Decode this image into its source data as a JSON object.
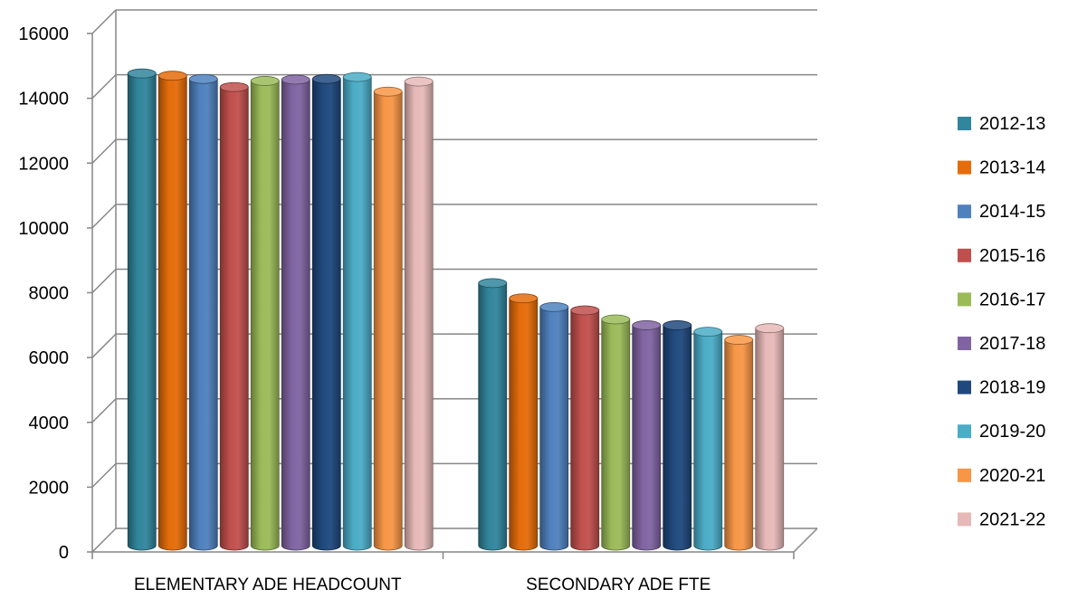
{
  "chart_data": {
    "type": "bar",
    "categories": [
      "ELEMENTARY ADE HEADCOUNT",
      "SECONDARY ADE FTE"
    ],
    "series": [
      {
        "name": "2012-13",
        "color": "#31859C",
        "values": [
          14850,
          8380
        ]
      },
      {
        "name": "2013-14",
        "color": "#E46C0A",
        "values": [
          14780,
          7910
        ]
      },
      {
        "name": "2014-15",
        "color": "#4F81BD",
        "values": [
          14680,
          7640
        ]
      },
      {
        "name": "2015-16",
        "color": "#C0504D",
        "values": [
          14430,
          7540
        ]
      },
      {
        "name": "2016-17",
        "color": "#9BBB59",
        "values": [
          14620,
          7260
        ]
      },
      {
        "name": "2017-18",
        "color": "#8064A2",
        "values": [
          14660,
          7080
        ]
      },
      {
        "name": "2018-19",
        "color": "#1F497D",
        "values": [
          14680,
          7080
        ]
      },
      {
        "name": "2019-20",
        "color": "#4BACC6",
        "values": [
          14740,
          6880
        ]
      },
      {
        "name": "2020-21",
        "color": "#F79646",
        "values": [
          14290,
          6630
        ]
      },
      {
        "name": "2021-22",
        "color": "#E6B9B8",
        "values": [
          14600,
          6990
        ]
      }
    ],
    "ylim": [
      0,
      16000
    ],
    "yticks": [
      0,
      2000,
      4000,
      6000,
      8000,
      10000,
      12000,
      14000,
      16000
    ],
    "grid": true,
    "legend": "right",
    "title": "",
    "xlabel": "",
    "ylabel": ""
  }
}
